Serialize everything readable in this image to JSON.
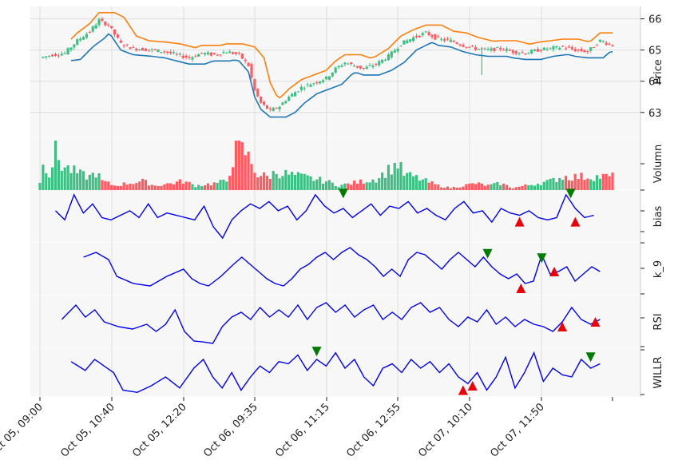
{
  "chart_data": {
    "type": "candlestick",
    "x_tick_labels": [
      "Oct 05, 09:00",
      "Oct 05, 10:40",
      "Oct 05, 12:20",
      "Oct 06, 09:35",
      "Oct 06, 11:15",
      "Oct 06, 12:55",
      "Oct 07, 10:10",
      "Oct 07, 11:50"
    ],
    "panels": [
      {
        "key": "price",
        "ylabel": "Price",
        "ylim": [
          62.2,
          66.4
        ],
        "ticks": [
          "63",
          "64",
          "65",
          "66"
        ],
        "tick_values": [
          63,
          64,
          65,
          66
        ]
      },
      {
        "key": "volume",
        "ylabel": "Volumn",
        "ylim": [
          0,
          1
        ]
      },
      {
        "key": "bias",
        "ylabel": "bias",
        "ylim": [
          -1.1,
          1.0
        ]
      },
      {
        "key": "k9",
        "ylabel": "k_9",
        "ylim": [
          0,
          100
        ]
      },
      {
        "key": "rsi",
        "ylabel": "RSI",
        "ylim": [
          0,
          100
        ]
      },
      {
        "key": "willr",
        "ylabel": "WILLR",
        "ylim": [
          -100,
          0
        ]
      }
    ],
    "colors": {
      "up": "#3dbf84",
      "down": "#ff5a5f",
      "upper_band": "#ff7f0e",
      "lower_band": "#1f77b4",
      "indicator": "#0000ee",
      "buy_marker": "#e8000b",
      "sell_marker": "#007a00",
      "grid": "#dcdcdc",
      "panel_bg": "#f7f7f7"
    },
    "n_bars": 130,
    "close_anchors": [
      [
        0,
        64.75
      ],
      [
        4,
        64.85
      ],
      [
        8,
        64.9
      ],
      [
        12,
        65.3
      ],
      [
        16,
        65.6
      ],
      [
        19,
        65.95
      ],
      [
        22,
        65.8
      ],
      [
        26,
        65.2
      ],
      [
        30,
        65.05
      ],
      [
        36,
        65.0
      ],
      [
        40,
        64.95
      ],
      [
        44,
        64.85
      ],
      [
        48,
        64.75
      ],
      [
        52,
        64.9
      ],
      [
        56,
        64.85
      ],
      [
        60,
        64.95
      ],
      [
        64,
        64.85
      ],
      [
        67,
        64.5
      ],
      [
        69,
        63.7
      ],
      [
        71,
        63.3
      ],
      [
        74,
        63.05
      ],
      [
        77,
        63.2
      ],
      [
        80,
        63.5
      ],
      [
        84,
        63.8
      ],
      [
        88,
        63.95
      ],
      [
        92,
        64.1
      ],
      [
        95,
        64.4
      ],
      [
        98,
        64.6
      ],
      [
        101,
        64.5
      ],
      [
        104,
        64.4
      ],
      [
        108,
        64.55
      ],
      [
        112,
        64.8
      ],
      [
        116,
        65.2
      ],
      [
        120,
        65.4
      ],
      [
        124,
        65.55
      ],
      [
        128,
        65.35
      ],
      [
        132,
        65.3
      ],
      [
        136,
        65.15
      ],
      [
        140,
        65.05
      ],
      [
        144,
        65.0
      ],
      [
        148,
        65.05
      ],
      [
        152,
        64.95
      ],
      [
        156,
        64.9
      ],
      [
        160,
        65.0
      ],
      [
        164,
        65.05
      ],
      [
        168,
        65.1
      ],
      [
        172,
        65.0
      ],
      [
        176,
        64.95
      ],
      [
        180,
        65.3
      ],
      [
        184,
        65.15
      ]
    ],
    "volume_anchors": [
      [
        0,
        0.15
      ],
      [
        1,
        0.75
      ],
      [
        2,
        0.55
      ],
      [
        3,
        0.35
      ],
      [
        5,
        0.85
      ],
      [
        7,
        0.55
      ],
      [
        10,
        0.45
      ],
      [
        13,
        0.35
      ],
      [
        16,
        0.3
      ],
      [
        18,
        0.4
      ],
      [
        20,
        0.2
      ],
      [
        24,
        0.1
      ],
      [
        28,
        0.15
      ],
      [
        33,
        0.2
      ],
      [
        37,
        0.1
      ],
      [
        42,
        0.15
      ],
      [
        46,
        0.2
      ],
      [
        50,
        0.1
      ],
      [
        56,
        0.15
      ],
      [
        60,
        0.2
      ],
      [
        63,
        0.95
      ],
      [
        66,
        0.85
      ],
      [
        68,
        0.6
      ],
      [
        70,
        0.35
      ],
      [
        73,
        0.3
      ],
      [
        76,
        0.4
      ],
      [
        80,
        0.35
      ],
      [
        84,
        0.3
      ],
      [
        88,
        0.25
      ],
      [
        92,
        0.2
      ],
      [
        96,
        0.1
      ],
      [
        100,
        0.15
      ],
      [
        104,
        0.2
      ],
      [
        108,
        0.25
      ],
      [
        112,
        0.45
      ],
      [
        115,
        0.6
      ],
      [
        117,
        0.35
      ],
      [
        120,
        0.3
      ],
      [
        124,
        0.2
      ],
      [
        128,
        0.1
      ],
      [
        132,
        0.05
      ],
      [
        136,
        0.1
      ],
      [
        140,
        0.15
      ],
      [
        144,
        0.1
      ],
      [
        148,
        0.15
      ],
      [
        152,
        0.05
      ],
      [
        156,
        0.1
      ],
      [
        160,
        0.15
      ],
      [
        164,
        0.2
      ],
      [
        168,
        0.3
      ]
    ],
    "bias_anchors": [
      [
        0,
        0.2
      ],
      [
        2,
        -0.2
      ],
      [
        4,
        0.9
      ],
      [
        6,
        0.1
      ],
      [
        8,
        0.5
      ],
      [
        10,
        -0.1
      ],
      [
        12,
        -0.2
      ],
      [
        14,
        0.0
      ],
      [
        16,
        0.2
      ],
      [
        18,
        -0.1
      ],
      [
        20,
        0.5
      ],
      [
        22,
        -0.1
      ],
      [
        24,
        0.1
      ],
      [
        26,
        0.0
      ],
      [
        30,
        -0.2
      ],
      [
        32,
        0.4
      ],
      [
        34,
        -0.5
      ],
      [
        36,
        -1.0
      ],
      [
        38,
        -0.2
      ],
      [
        40,
        0.2
      ],
      [
        42,
        0.5
      ],
      [
        44,
        0.3
      ],
      [
        46,
        0.6
      ],
      [
        48,
        0.2
      ],
      [
        50,
        0.4
      ],
      [
        52,
        -0.2
      ],
      [
        54,
        0.2
      ],
      [
        56,
        0.9
      ],
      [
        58,
        0.4
      ],
      [
        60,
        0.1
      ],
      [
        62,
        0.3
      ],
      [
        64,
        -0.1
      ],
      [
        66,
        0.2
      ],
      [
        68,
        0.5
      ],
      [
        70,
        0.0
      ],
      [
        72,
        0.4
      ],
      [
        74,
        0.3
      ],
      [
        76,
        0.6
      ],
      [
        78,
        0.1
      ],
      [
        80,
        0.3
      ],
      [
        82,
        0.0
      ],
      [
        84,
        -0.2
      ],
      [
        86,
        0.3
      ],
      [
        88,
        0.6
      ],
      [
        90,
        0.1
      ],
      [
        92,
        0.2
      ],
      [
        94,
        -0.3
      ],
      [
        96,
        0.3
      ],
      [
        98,
        0.1
      ],
      [
        100,
        0.0
      ],
      [
        102,
        0.2
      ],
      [
        104,
        -0.1
      ],
      [
        106,
        -0.2
      ],
      [
        108,
        -0.1
      ],
      [
        110,
        0.9
      ],
      [
        112,
        0.3
      ],
      [
        114,
        -0.1
      ],
      [
        116,
        0.0
      ]
    ],
    "k9_anchors": [
      [
        0,
        75
      ],
      [
        3,
        85
      ],
      [
        6,
        70
      ],
      [
        8,
        35
      ],
      [
        12,
        20
      ],
      [
        16,
        15
      ],
      [
        20,
        35
      ],
      [
        24,
        50
      ],
      [
        26,
        30
      ],
      [
        28,
        20
      ],
      [
        30,
        15
      ],
      [
        33,
        35
      ],
      [
        36,
        60
      ],
      [
        38,
        75
      ],
      [
        40,
        60
      ],
      [
        42,
        45
      ],
      [
        44,
        30
      ],
      [
        46,
        20
      ],
      [
        48,
        15
      ],
      [
        50,
        30
      ],
      [
        52,
        50
      ],
      [
        54,
        60
      ],
      [
        56,
        75
      ],
      [
        58,
        85
      ],
      [
        60,
        70
      ],
      [
        62,
        85
      ],
      [
        64,
        95
      ],
      [
        66,
        80
      ],
      [
        68,
        70
      ],
      [
        70,
        55
      ],
      [
        72,
        35
      ],
      [
        74,
        50
      ],
      [
        76,
        35
      ],
      [
        78,
        70
      ],
      [
        80,
        85
      ],
      [
        82,
        80
      ],
      [
        84,
        65
      ],
      [
        86,
        50
      ],
      [
        88,
        70
      ],
      [
        90,
        85
      ],
      [
        92,
        70
      ],
      [
        94,
        55
      ],
      [
        96,
        75
      ],
      [
        98,
        55
      ],
      [
        100,
        40
      ],
      [
        102,
        30
      ],
      [
        104,
        40
      ],
      [
        106,
        20
      ],
      [
        108,
        25
      ],
      [
        110,
        80
      ],
      [
        112,
        40
      ],
      [
        114,
        45
      ],
      [
        116,
        55
      ],
      [
        118,
        25
      ],
      [
        120,
        40
      ],
      [
        122,
        55
      ],
      [
        124,
        45
      ]
    ],
    "rsi_anchors": [
      [
        0,
        55
      ],
      [
        3,
        85
      ],
      [
        5,
        60
      ],
      [
        7,
        75
      ],
      [
        9,
        50
      ],
      [
        12,
        40
      ],
      [
        15,
        35
      ],
      [
        18,
        45
      ],
      [
        20,
        30
      ],
      [
        22,
        45
      ],
      [
        24,
        75
      ],
      [
        26,
        30
      ],
      [
        28,
        10
      ],
      [
        30,
        8
      ],
      [
        32,
        5
      ],
      [
        34,
        40
      ],
      [
        36,
        60
      ],
      [
        38,
        70
      ],
      [
        40,
        55
      ],
      [
        42,
        80
      ],
      [
        44,
        60
      ],
      [
        46,
        75
      ],
      [
        48,
        60
      ],
      [
        50,
        85
      ],
      [
        52,
        55
      ],
      [
        54,
        80
      ],
      [
        56,
        90
      ],
      [
        58,
        70
      ],
      [
        60,
        85
      ],
      [
        62,
        60
      ],
      [
        64,
        75
      ],
      [
        66,
        85
      ],
      [
        68,
        55
      ],
      [
        70,
        70
      ],
      [
        72,
        55
      ],
      [
        74,
        80
      ],
      [
        76,
        90
      ],
      [
        78,
        70
      ],
      [
        80,
        80
      ],
      [
        82,
        55
      ],
      [
        84,
        40
      ],
      [
        86,
        60
      ],
      [
        88,
        50
      ],
      [
        90,
        75
      ],
      [
        92,
        45
      ],
      [
        94,
        60
      ],
      [
        96,
        40
      ],
      [
        98,
        55
      ],
      [
        100,
        45
      ],
      [
        102,
        40
      ],
      [
        104,
        30
      ],
      [
        106,
        50
      ],
      [
        108,
        80
      ],
      [
        110,
        55
      ],
      [
        112,
        45
      ],
      [
        114,
        55
      ]
    ],
    "willr_anchors": [
      [
        0,
        -25
      ],
      [
        3,
        -45
      ],
      [
        5,
        -20
      ],
      [
        7,
        -35
      ],
      [
        9,
        -50
      ],
      [
        11,
        -90
      ],
      [
        14,
        -95
      ],
      [
        17,
        -80
      ],
      [
        20,
        -60
      ],
      [
        23,
        -85
      ],
      [
        26,
        -40
      ],
      [
        28,
        -20
      ],
      [
        30,
        -60
      ],
      [
        32,
        -85
      ],
      [
        34,
        -50
      ],
      [
        36,
        -90
      ],
      [
        38,
        -60
      ],
      [
        40,
        -35
      ],
      [
        42,
        -50
      ],
      [
        44,
        -25
      ],
      [
        46,
        -30
      ],
      [
        48,
        -10
      ],
      [
        50,
        -45
      ],
      [
        52,
        -20
      ],
      [
        54,
        -35
      ],
      [
        56,
        -5
      ],
      [
        58,
        -40
      ],
      [
        60,
        -20
      ],
      [
        62,
        -60
      ],
      [
        64,
        -80
      ],
      [
        66,
        -40
      ],
      [
        68,
        -30
      ],
      [
        70,
        -50
      ],
      [
        72,
        -20
      ],
      [
        74,
        -40
      ],
      [
        76,
        -25
      ],
      [
        78,
        -50
      ],
      [
        80,
        -30
      ],
      [
        82,
        -60
      ],
      [
        84,
        -75
      ],
      [
        86,
        -50
      ],
      [
        88,
        -90
      ],
      [
        90,
        -60
      ],
      [
        92,
        -15
      ],
      [
        94,
        -85
      ],
      [
        96,
        -50
      ],
      [
        98,
        -5
      ],
      [
        100,
        -70
      ],
      [
        102,
        -40
      ],
      [
        104,
        -55
      ],
      [
        106,
        -60
      ],
      [
        108,
        -20
      ],
      [
        110,
        -40
      ],
      [
        112,
        -30
      ]
    ],
    "markers": {
      "bias_sell": [
        [
          62,
          0.95
        ],
        [
          111,
          0.95
        ]
      ],
      "bias_buy": [
        [
          100,
          -0.28
        ],
        [
          112,
          -0.28
        ]
      ],
      "k9_sell": [
        [
          97,
          82
        ],
        [
          110,
          73
        ]
      ],
      "k9_buy": [
        [
          105,
          10
        ],
        [
          113,
          45
        ]
      ],
      "rsi_buy": [
        [
          106,
          40
        ],
        [
          113,
          50
        ]
      ],
      "willr_sell": [
        [
          52,
          -2
        ],
        [
          110,
          -15
        ]
      ],
      "willr_buy": [
        [
          83,
          -90
        ],
        [
          85,
          -80
        ]
      ]
    }
  }
}
